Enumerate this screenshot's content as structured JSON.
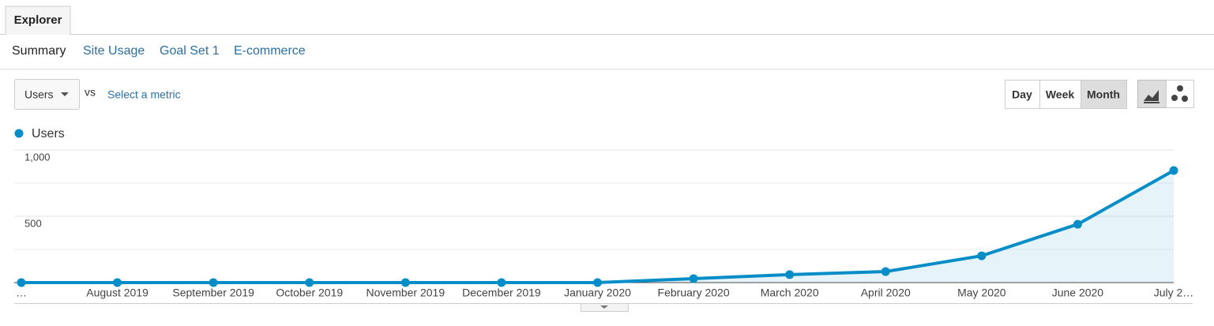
{
  "tab": "Explorer",
  "subtabs": [
    "Summary",
    "Site Usage",
    "Goal Set 1",
    "E-commerce"
  ],
  "metric_select": "Users",
  "vs": "vs",
  "select_metric": "Select a metric",
  "granularity": [
    "Day",
    "Week",
    "Month"
  ],
  "active_granularity": "Month",
  "chart_data": {
    "type": "line",
    "x": [
      "…",
      "August 2019",
      "September 2019",
      "October 2019",
      "November 2019",
      "December 2019",
      "January 2020",
      "February 2020",
      "March 2020",
      "April 2020",
      "May 2020",
      "June 2020",
      "July 2…"
    ],
    "series": [
      {
        "name": "Users",
        "color": "#058dc7",
        "values": [
          0,
          0,
          0,
          0,
          0,
          0,
          0,
          30,
          60,
          83,
          202,
          440,
          845
        ]
      }
    ],
    "ylim": [
      0,
      1000
    ],
    "yticks": [
      500,
      {
        "value": 1000,
        "label": "1,000"
      }
    ],
    "grid": true,
    "area": true
  }
}
